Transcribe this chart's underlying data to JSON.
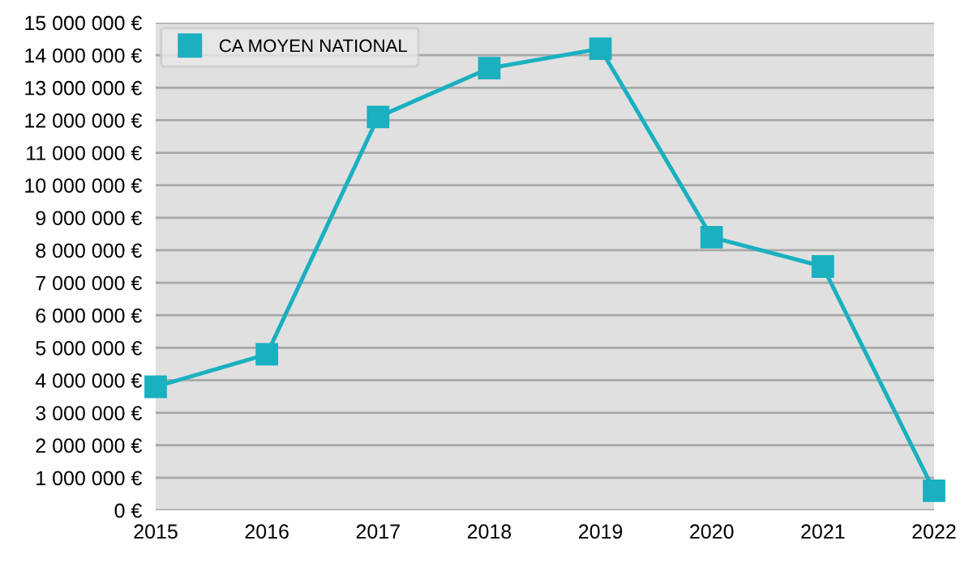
{
  "chart_data": {
    "type": "line",
    "categories": [
      "2015",
      "2016",
      "2017",
      "2018",
      "2019",
      "2020",
      "2021",
      "2022"
    ],
    "series": [
      {
        "name": "CA MOYEN NATIONAL",
        "color": "#1ab0c0",
        "values": [
          3800000,
          4800000,
          12100000,
          13600000,
          14200000,
          8400000,
          7500000,
          600000
        ]
      }
    ],
    "ylim": [
      0,
      15000000
    ],
    "yticks": [
      {
        "value": 0,
        "label": "0 €"
      },
      {
        "value": 1000000,
        "label": "1 000 000 €"
      },
      {
        "value": 2000000,
        "label": "2 000 000 €"
      },
      {
        "value": 3000000,
        "label": "3 000 000 €"
      },
      {
        "value": 4000000,
        "label": "4 000 000 €"
      },
      {
        "value": 5000000,
        "label": "5 000 000 €"
      },
      {
        "value": 6000000,
        "label": "6 000 000 €"
      },
      {
        "value": 7000000,
        "label": "7 000 000 €"
      },
      {
        "value": 8000000,
        "label": "8 000 000 €"
      },
      {
        "value": 9000000,
        "label": "9 000 000 €"
      },
      {
        "value": 10000000,
        "label": "10 000 000 €"
      },
      {
        "value": 11000000,
        "label": "11 000 000 €"
      },
      {
        "value": 12000000,
        "label": "12 000 000 €"
      },
      {
        "value": 13000000,
        "label": "13 000 000 €"
      },
      {
        "value": 14000000,
        "label": "14 000 000 €"
      },
      {
        "value": 15000000,
        "label": "15 000 000 €"
      }
    ],
    "grid": "y",
    "legend": "top left",
    "marker": "square",
    "line_style": "solid"
  }
}
